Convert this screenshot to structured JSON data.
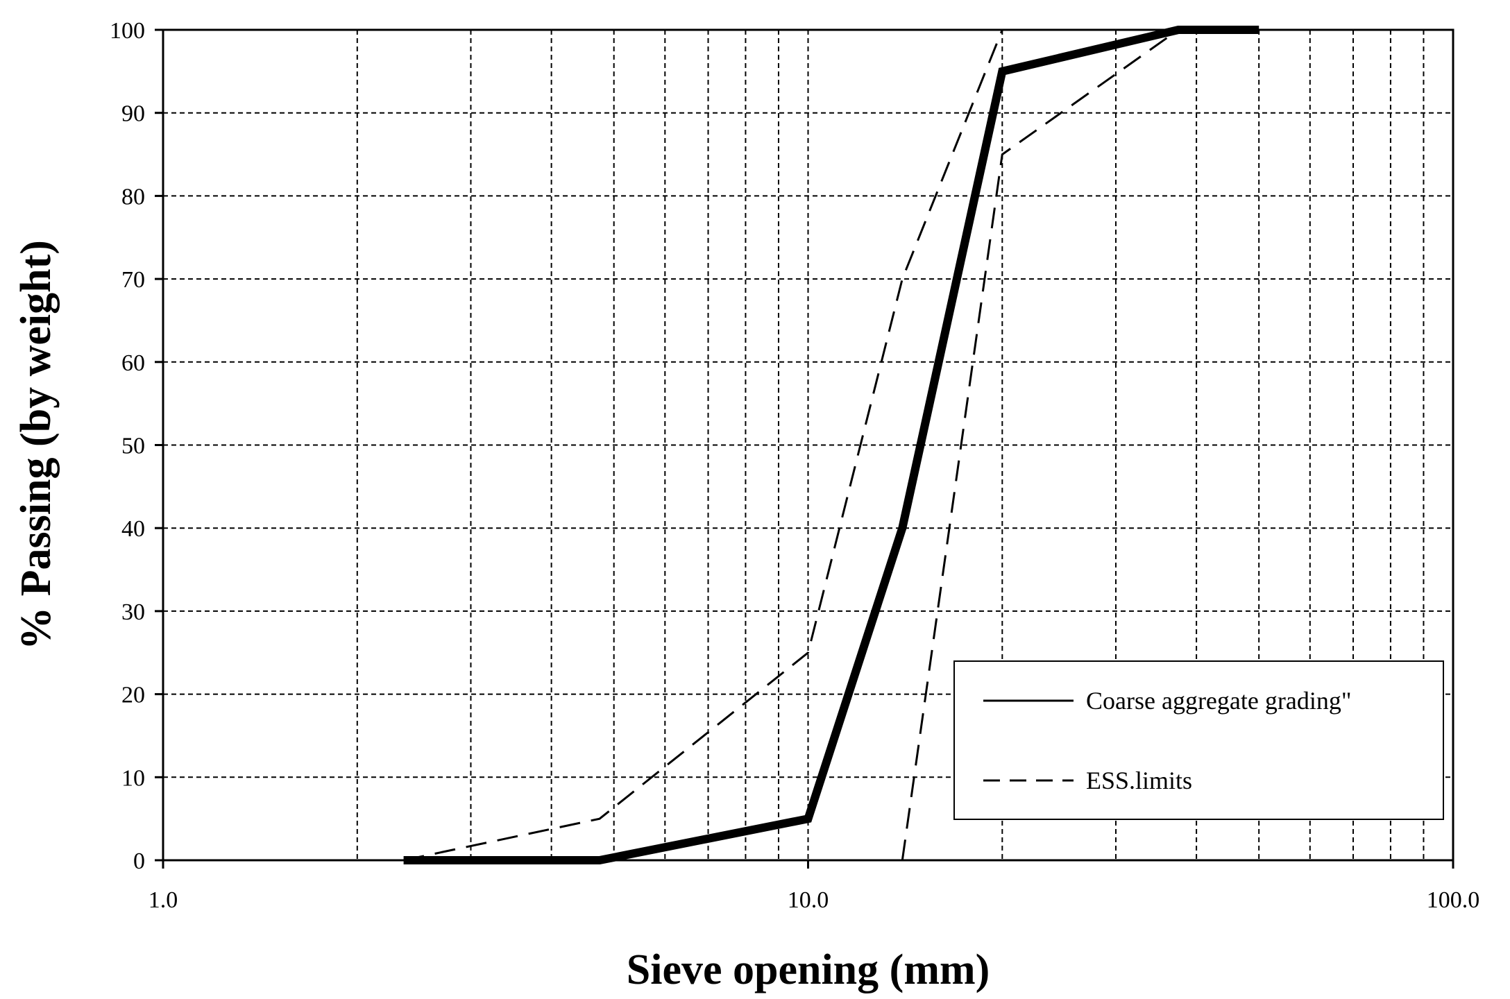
{
  "chart_data": {
    "type": "line",
    "xscale": "log",
    "xlim": [
      1.0,
      100.0
    ],
    "ylim": [
      0,
      100
    ],
    "xlabel": "Sieve opening (mm)",
    "ylabel": "% Passing (by weight)",
    "x_tick_labels": [
      "1.0",
      "10.0",
      "100.0"
    ],
    "y_ticks": [
      0,
      10,
      20,
      30,
      40,
      50,
      60,
      70,
      80,
      90,
      100
    ],
    "grid": "dashed, log minor lines",
    "legend_position": "bottom-right",
    "legend": [
      {
        "label": "Coarse aggregate grading\"",
        "style": "solid"
      },
      {
        "label": "ESS.limits",
        "style": "dashed"
      }
    ],
    "series": [
      {
        "style": "solid-thick",
        "x": [
          2.36,
          4.75,
          10.0,
          14.0,
          20.0,
          37.5,
          50.0
        ],
        "y": [
          0,
          0,
          5,
          40,
          95,
          100,
          100
        ]
      },
      {
        "style": "dashed",
        "x": [
          2.36,
          4.75,
          10.0,
          14.0,
          20.0
        ],
        "y": [
          0,
          5,
          25,
          70,
          100
        ]
      },
      {
        "style": "dashed",
        "x": [
          14.0,
          20.0,
          37.5
        ],
        "y": [
          0,
          85,
          100
        ]
      }
    ]
  }
}
